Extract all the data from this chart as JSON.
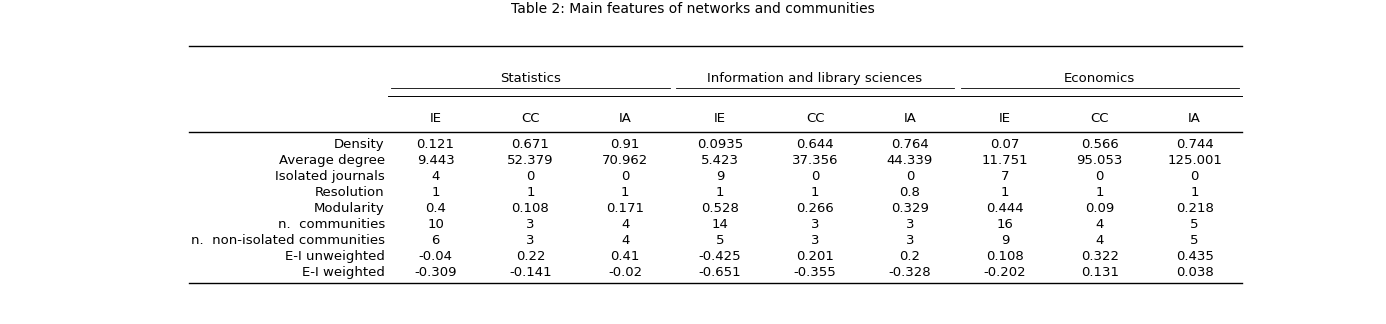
{
  "title": "Table 2: Main features of networks and communities",
  "col_groups": [
    {
      "label": "Statistics",
      "cols": [
        "IE",
        "CC",
        "IA"
      ]
    },
    {
      "label": "Information and library sciences",
      "cols": [
        "IE",
        "CC",
        "IA"
      ]
    },
    {
      "label": "Economics",
      "cols": [
        "IE",
        "CC",
        "IA"
      ]
    }
  ],
  "row_labels": [
    "Density",
    "Average degree",
    "Isolated journals",
    "Resolution",
    "Modularity",
    "n.  communities",
    "n.  non-isolated communities",
    "E-I unweighted",
    "E-I weighted"
  ],
  "data": [
    [
      "0.121",
      "0.671",
      "0.91",
      "0.0935",
      "0.644",
      "0.764",
      "0.07",
      "0.566",
      "0.744"
    ],
    [
      "9.443",
      "52.379",
      "70.962",
      "5.423",
      "37.356",
      "44.339",
      "11.751",
      "95.053",
      "125.001"
    ],
    [
      "4",
      "0",
      "0",
      "9",
      "0",
      "0",
      "7",
      "0",
      "0"
    ],
    [
      "1",
      "1",
      "1",
      "1",
      "1",
      "0.8",
      "1",
      "1",
      "1"
    ],
    [
      "0.4",
      "0.108",
      "0.171",
      "0.528",
      "0.266",
      "0.329",
      "0.444",
      "0.09",
      "0.218"
    ],
    [
      "10",
      "3",
      "4",
      "14",
      "3",
      "3",
      "16",
      "4",
      "5"
    ],
    [
      "6",
      "3",
      "4",
      "5",
      "3",
      "3",
      "9",
      "4",
      "5"
    ],
    [
      "-0.04",
      "0.22",
      "0.41",
      "-0.425",
      "0.201",
      "0.2",
      "0.108",
      "0.322",
      "0.435"
    ],
    [
      "-0.309",
      "-0.141",
      "-0.02",
      "-0.651",
      "-0.355",
      "-0.328",
      "-0.202",
      "0.131",
      "0.038"
    ]
  ],
  "background_color": "#ffffff",
  "font_size": 9.5,
  "title_font_size": 10
}
